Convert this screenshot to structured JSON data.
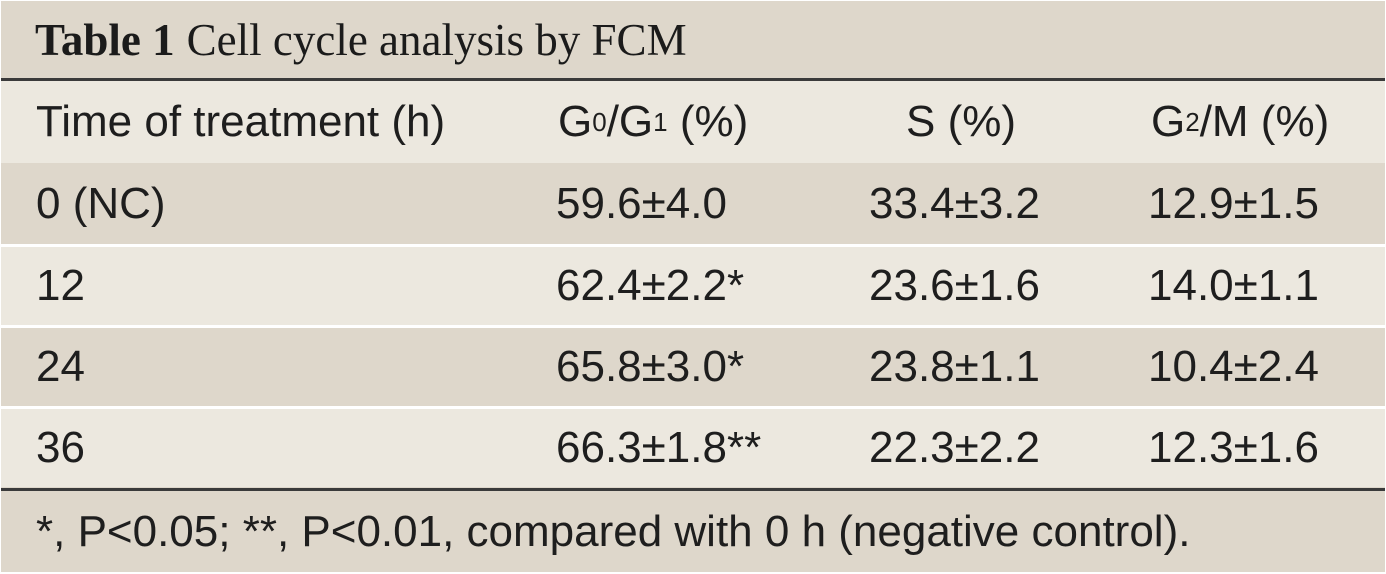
{
  "table": {
    "label": "Table 1",
    "title": "Cell cycle analysis by FCM",
    "headers": {
      "time": "Time of treatment (h)",
      "g0g1": {
        "a": "G",
        "a_sub": "0",
        "slash": "/G",
        "b_sub": "1",
        "suffix": " (%)"
      },
      "s": "S (%)",
      "g2m": {
        "a": "G",
        "a_sub": "2",
        "suffix": "/M (%)"
      }
    },
    "rows": [
      {
        "time": "0 (NC)",
        "g0g1": "59.6±4.0",
        "s": "33.4±3.2",
        "g2m": "12.9±1.5"
      },
      {
        "time": "12",
        "g0g1": "62.4±2.2*",
        "s": "23.6±1.6",
        "g2m": "14.0±1.1"
      },
      {
        "time": "24",
        "g0g1": "65.8±3.0*",
        "s": "23.8±1.1",
        "g2m": "10.4±2.4"
      },
      {
        "time": "36",
        "g0g1": "66.3±1.8**",
        "s": "22.3±2.2",
        "g2m": "12.3±1.6"
      }
    ],
    "footnote": "*, P<0.05; **, P<0.01, compared with 0 h (negative control)."
  },
  "colors": {
    "band_dark": "#ded7cb",
    "band_light": "#ece8df",
    "rule": "#3a3a3a"
  }
}
